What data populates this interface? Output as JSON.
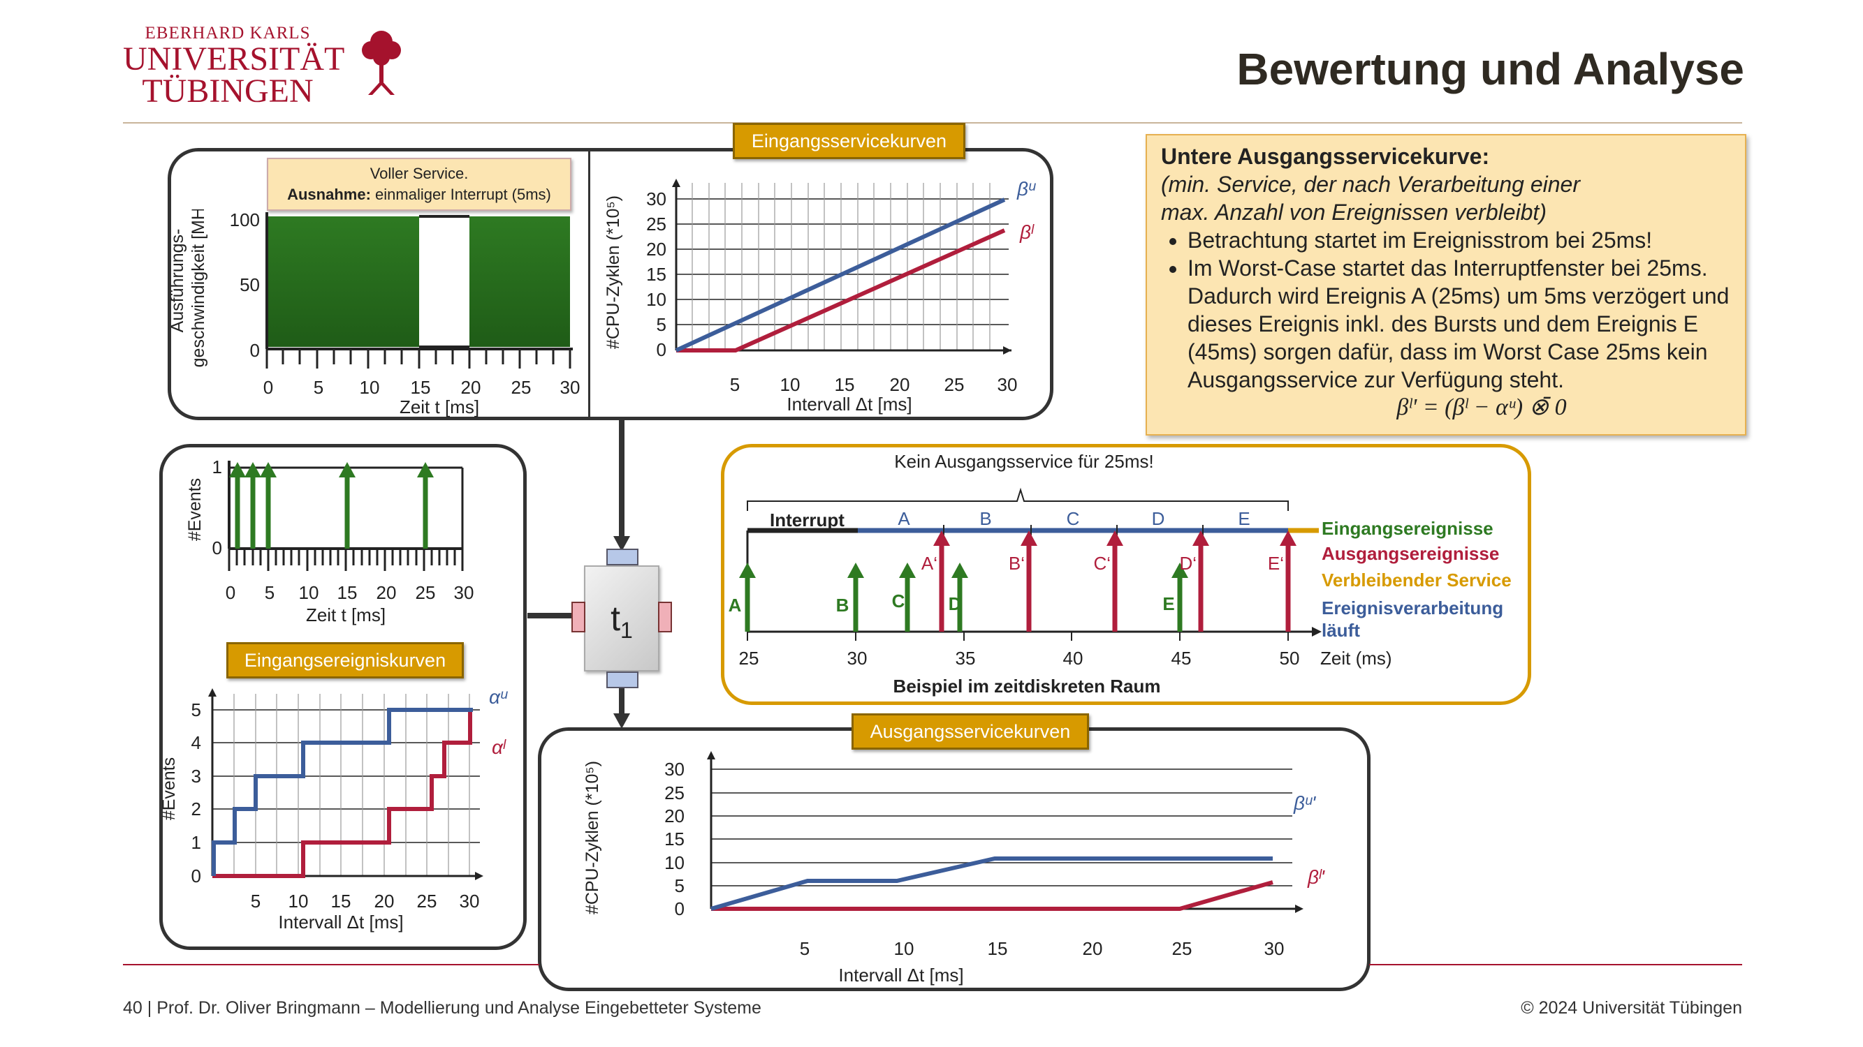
{
  "header": {
    "logo": {
      "line1": "EBERHARD KARLS",
      "line2": "UNIVERSITÄT",
      "line3": "TÜBINGEN"
    },
    "title": "Bewertung und Analyse"
  },
  "colors": {
    "green": "#2e7a22",
    "red": "#b01e3c",
    "blue": "#3c5d9a",
    "orange": "#d79a00",
    "dark": "#333333"
  },
  "labels": {
    "input_service": "Eingangsservicekurven",
    "input_events": "Eingangsereigniskurven",
    "output_service": "Ausgangsservicekurven"
  },
  "speed_panel": {
    "callout_line1": "Voller Service.",
    "callout_bold": "Ausnahme:",
    "callout_rest": " einmaliger Interrupt (5ms)",
    "ylabel_line1": "Ausführungs-",
    "ylabel_line2": "geschwindigkeit [MHz]",
    "xlabel": "Zeit t [ms]",
    "yticks": [
      "100",
      "50",
      "0"
    ],
    "xticks": [
      "0",
      "5",
      "10",
      "15",
      "20",
      "25",
      "30"
    ]
  },
  "input_service_chart": {
    "ylabel": "#CPU-Zyklen (*10⁵)",
    "xlabel": "Intervall Δt [ms]",
    "yticks": [
      "30",
      "25",
      "20",
      "15",
      "10",
      "5",
      "0"
    ],
    "xticks": [
      "5",
      "10",
      "15",
      "20",
      "25",
      "30"
    ],
    "label_upper": "βᵘ",
    "label_lower": "βˡ"
  },
  "events_chart": {
    "ylabel": "#Events",
    "xlabel": "Zeit t [ms]",
    "yticks": [
      "1",
      "0"
    ],
    "xticks": [
      "0",
      "5",
      "10",
      "15",
      "20",
      "25",
      "30"
    ]
  },
  "event_curves": {
    "ylabel": "#Events",
    "xlabel": "Intervall Δt [ms]",
    "yticks": [
      "5",
      "4",
      "3",
      "2",
      "1",
      "0"
    ],
    "xticks": [
      "5",
      "10",
      "15",
      "20",
      "25",
      "30"
    ],
    "label_upper": "αᵘ",
    "label_lower": "αˡ"
  },
  "task": {
    "name": "t",
    "sub": "1"
  },
  "output_chart": {
    "ylabel": "#CPU-Zyklen (*10⁵)",
    "xlabel": "Intervall Δt [ms]",
    "yticks": [
      "30",
      "25",
      "20",
      "15",
      "10",
      "5",
      "0"
    ],
    "xticks": [
      "5",
      "10",
      "15",
      "20",
      "25",
      "30"
    ],
    "label_upper": "βᵘ'",
    "label_lower": "βˡ'"
  },
  "note": {
    "heading": "Untere Ausgangsservicekurve:",
    "italic1": "(min. Service, der nach Verarbeitung einer",
    "italic2": "max. Anzahl von Ereignissen verbleibt)",
    "bullet1": "Betrachtung startet im Ereignisstrom bei 25ms!",
    "bullet2": "Im Worst-Case startet das Interruptfenster bei 25ms. Dadurch wird Ereignis A (25ms) um 5ms verzögert und dieses Ereignis inkl. des Bursts und dem Ereignis E (45ms) sorgen dafür, dass im Worst Case 25ms kein Ausgangsservice zur Verfügung steht.",
    "formula": "βˡ' = (βˡ − αᵘ) ⊗̄ 0"
  },
  "timeline": {
    "top_label": "Kein Ausgangsservice für 25ms!",
    "interrupt": "Interrupt",
    "segments": [
      "A",
      "B",
      "C",
      "D",
      "E"
    ],
    "in_events": [
      "A",
      "B",
      "C",
      "D",
      "E"
    ],
    "out_events": [
      "A‘",
      "B‘",
      "C‘",
      "D‘",
      "E‘"
    ],
    "xticks": [
      "25",
      "30",
      "35",
      "40",
      "45",
      "50"
    ],
    "xunit": "Zeit (ms)",
    "caption": "Beispiel im zeitdiskreten Raum",
    "legend": {
      "in": "Eingangsereignisse",
      "out": "Ausgangsereignisse",
      "remaining": "Verbleibender Service",
      "processing1": "Ereignisverarbeitung",
      "processing2": "läuft"
    }
  },
  "footer": {
    "left": "40 | Prof. Dr. Oliver Bringmann – Modellierung und Analyse Eingebetteter Systeme",
    "right": "© 2024 Universität Tübingen"
  }
}
